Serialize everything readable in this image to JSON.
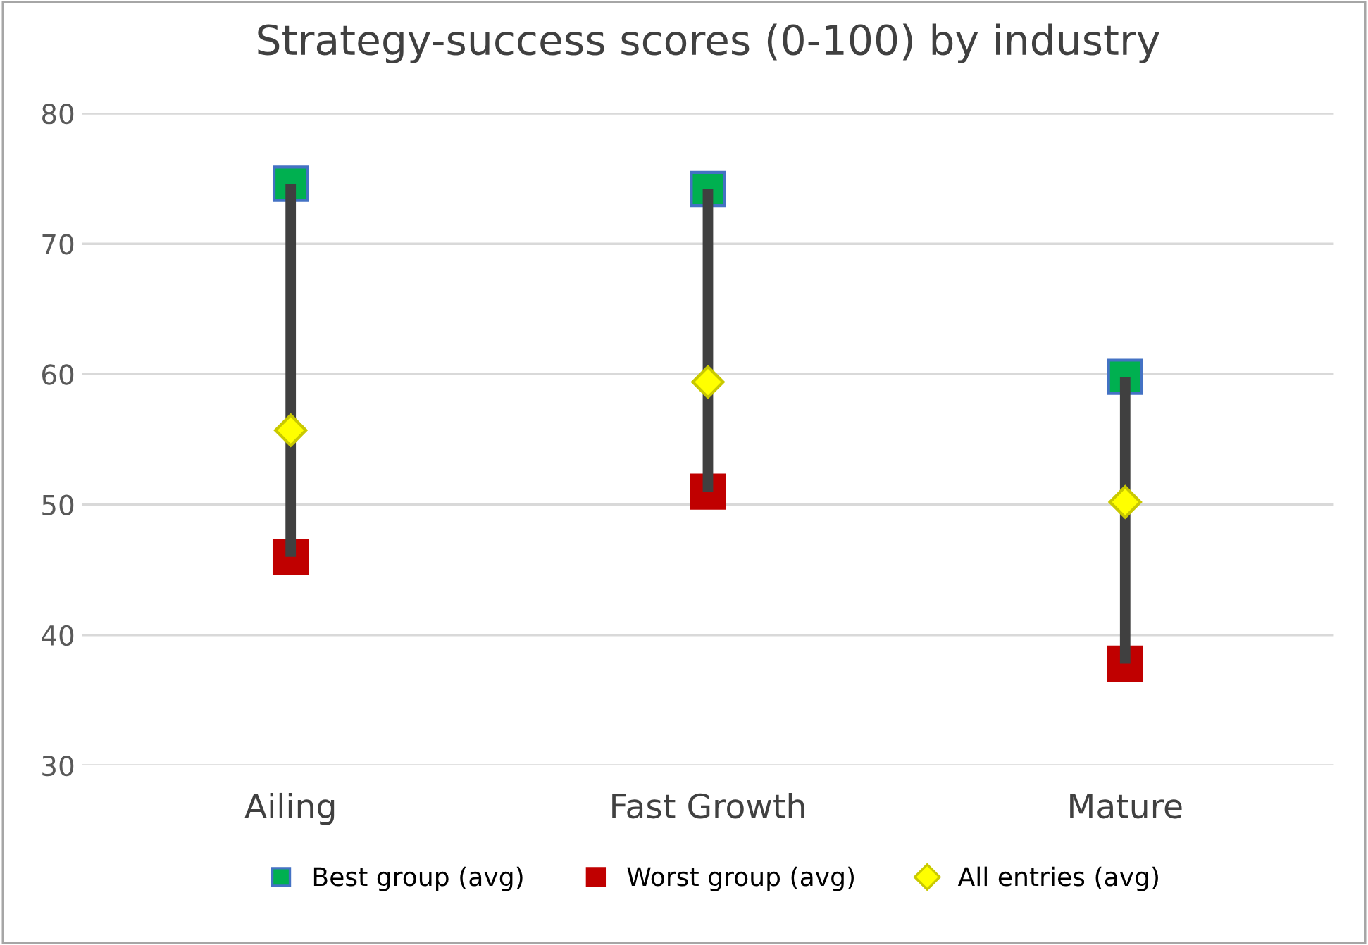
{
  "chart_data": {
    "type": "scatter",
    "title": "Strategy-success scores (0-100) by industry",
    "categories": [
      "Ailing",
      "Fast Growth",
      "Mature"
    ],
    "series": [
      {
        "type": "bar",
        "color": "#404040",
        "base": [
          46.0,
          51.0,
          37.8
        ],
        "values": [
          28.6,
          23.2,
          22.0
        ]
      },
      {
        "name": "Best group (avg)",
        "color": "#00b050",
        "marker": "square",
        "values": [
          74.6,
          74.2,
          59.8
        ]
      },
      {
        "name": "Worst group (avg)",
        "color": "#c00000",
        "marker": "square",
        "values": [
          46.0,
          51.0,
          37.8
        ]
      },
      {
        "name": "All entries (avg)",
        "color": "#ffff00",
        "marker": "diamond",
        "values": [
          55.7,
          59.4,
          50.2
        ]
      }
    ],
    "ylim": [
      30,
      80
    ],
    "yticks": [
      30,
      40,
      50,
      60,
      70,
      80
    ],
    "grid": "y",
    "legend": "bottom"
  }
}
